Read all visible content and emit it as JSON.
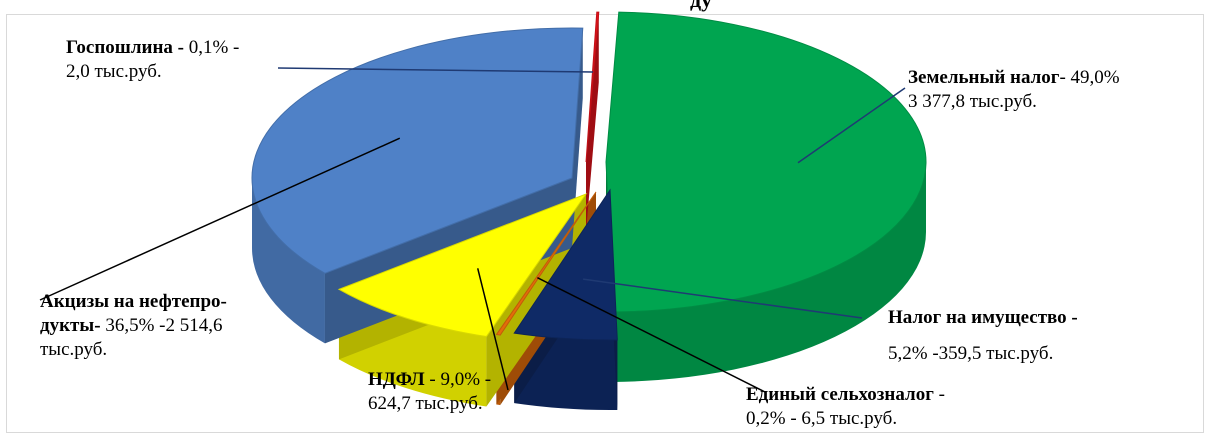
{
  "chart_data": {
    "type": "pie",
    "title_fragment": "ду",
    "slices": [
      {
        "name": "Земельный налог",
        "percent": 49.0,
        "value": 3377.8,
        "color": "#00a550",
        "label_name": "Земельный налог",
        "label_sep1": "- 49,0%",
        "label_line2": "3 377,8 тыс.руб."
      },
      {
        "name": "Налог на имущество",
        "percent": 5.2,
        "value": 359.5,
        "color": "#0f2a66",
        "label_name": "Налог на имущество -",
        "label_line2": "5,2% -359,5 тыс.руб."
      },
      {
        "name": "Единый сельхозналог",
        "percent": 0.2,
        "value": 6.5,
        "color": "#e36c0a",
        "label_name": "Единый сельхозналог",
        "label_sep1": " -",
        "label_line2": "0,2% - 6,5 тыс.руб."
      },
      {
        "name": "НДФЛ",
        "percent": 9.0,
        "value": 624.7,
        "color": "#ffff00",
        "label_name": "НДФЛ",
        "label_sep1": " - 9,0% -",
        "label_line2": "624,7 тыс.руб."
      },
      {
        "name": "Акцизы на нефтепродукты",
        "percent": 36.5,
        "value": 2514.6,
        "color": "#4f81c7",
        "label_name": "Акцизы на нефтепро-",
        "label_line2_bold": "дукты-",
        "label_line2": " 36,5% -2 514,6",
        "label_line3": "тыс.руб."
      },
      {
        "name": "Госпошлина",
        "percent": 0.1,
        "value": 2.0,
        "color": "#e3131b",
        "label_name": "Госпошлина -",
        "label_sep1": " 0,1% -",
        "label_line2": "2,0 тыс.руб."
      }
    ]
  }
}
